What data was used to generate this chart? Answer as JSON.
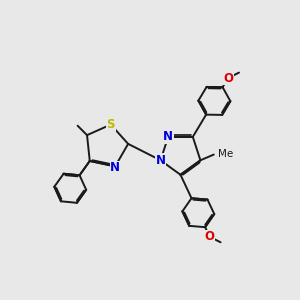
{
  "background_color": "#e8e8e8",
  "bond_color": "#1a1a1a",
  "bond_width": 1.4,
  "atom_colors": {
    "N": "#0000dd",
    "S": "#bbbb00",
    "O": "#dd0000",
    "C": "#1a1a1a"
  },
  "font_size_atom": 8.5,
  "font_size_label": 7.5
}
